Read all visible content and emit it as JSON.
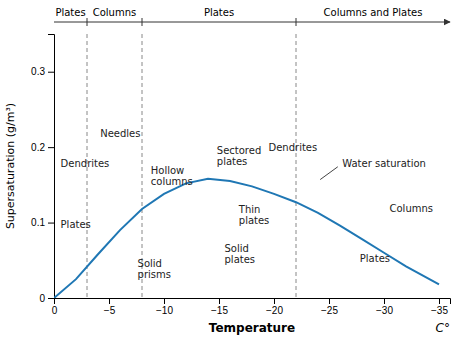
{
  "chart_data": {
    "type": "line",
    "xlabel": "Temperature",
    "x_unit_label": "C°",
    "ylabel": "Supersaturation (g/m³)",
    "xlim": [
      0,
      -36
    ],
    "ylim": [
      0,
      0.35
    ],
    "xticks": [
      0,
      -5,
      -10,
      -15,
      -20,
      -25,
      -30,
      -35
    ],
    "yticks": [
      0,
      0.1,
      0.2,
      0.3
    ],
    "x": [
      0,
      -2,
      -4,
      -6,
      -8,
      -10,
      -12,
      -14,
      -16,
      -18,
      -20,
      -22,
      -24,
      -26,
      -28,
      -30,
      -32,
      -35
    ],
    "values": [
      0.0,
      0.025,
      0.058,
      0.09,
      0.118,
      0.138,
      0.152,
      0.158,
      0.155,
      0.148,
      0.138,
      0.127,
      0.113,
      0.096,
      0.078,
      0.06,
      0.042,
      0.018
    ],
    "zones": {
      "boundaries": [
        -3,
        -8,
        -22
      ],
      "labels": [
        "Plates",
        "Columns",
        "Plates",
        "Columns and Plates"
      ]
    },
    "annotations": [
      {
        "text": "Dendrites",
        "x": -0.6,
        "y": 0.178
      },
      {
        "text": "Plates",
        "x": -0.6,
        "y": 0.097
      },
      {
        "text": "Needles",
        "x": -4.2,
        "y": 0.218
      },
      {
        "text": "Hollow\ncolumns",
        "x": -8.8,
        "y": 0.162
      },
      {
        "text": "Solid\nprisms",
        "x": -7.6,
        "y": 0.038
      },
      {
        "text": "Sectored\nplates",
        "x": -14.8,
        "y": 0.188
      },
      {
        "text": "Dendrites",
        "x": -19.5,
        "y": 0.2
      },
      {
        "text": "Thin\nplates",
        "x": -16.8,
        "y": 0.11
      },
      {
        "text": "Solid\nplates",
        "x": -15.5,
        "y": 0.058
      },
      {
        "text": "Water saturation",
        "x": -26.2,
        "y": 0.178,
        "arrow": {
          "from": [
            -25.8,
            0.174
          ],
          "to": [
            -24.2,
            0.157
          ]
        }
      },
      {
        "text": "Columns",
        "x": -30.5,
        "y": 0.118
      },
      {
        "text": "Plates",
        "x": -27.8,
        "y": 0.052
      }
    ]
  }
}
